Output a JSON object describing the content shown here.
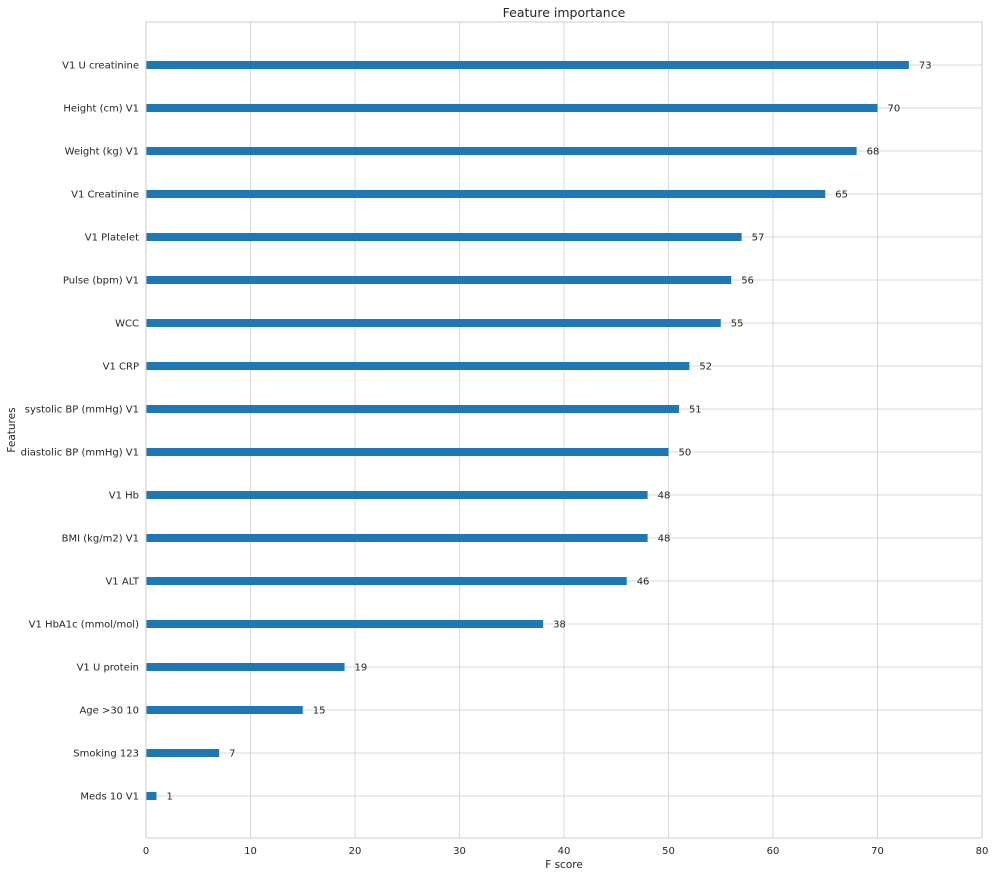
{
  "chart_data": {
    "type": "bar",
    "orientation": "horizontal",
    "title": "Feature importance",
    "xlabel": "F score",
    "ylabel": "Features",
    "xlim": [
      0,
      80
    ],
    "xticks": [
      "0",
      "10",
      "20",
      "30",
      "40",
      "50",
      "60",
      "70",
      "80"
    ],
    "grid": true,
    "bar_color": "#1f77b4",
    "grid_color": "#d9d9d9",
    "categories": [
      "V1 U creatinine",
      "Height (cm) V1",
      "Weight (kg) V1",
      "V1 Creatinine",
      "V1 Platelet",
      "Pulse (bpm) V1",
      "WCC",
      "V1 CRP",
      "systolic BP (mmHg) V1",
      "diastolic BP (mmHg) V1",
      "V1 Hb",
      "BMI (kg/m2) V1",
      "V1 ALT",
      "V1 HbA1c (mmol/mol)",
      "V1 U protein",
      "Age >30 10",
      "Smoking 123",
      "Meds 10 V1"
    ],
    "values": [
      73,
      70,
      68,
      65,
      57,
      56,
      55,
      52,
      51,
      50,
      48,
      48,
      46,
      38,
      19,
      15,
      7,
      1
    ],
    "value_labels": [
      "73",
      "70",
      "68",
      "65",
      "57",
      "56",
      "55",
      "52",
      "51",
      "50",
      "48",
      "48",
      "46",
      "38",
      "19",
      "15",
      "7",
      "1"
    ]
  }
}
